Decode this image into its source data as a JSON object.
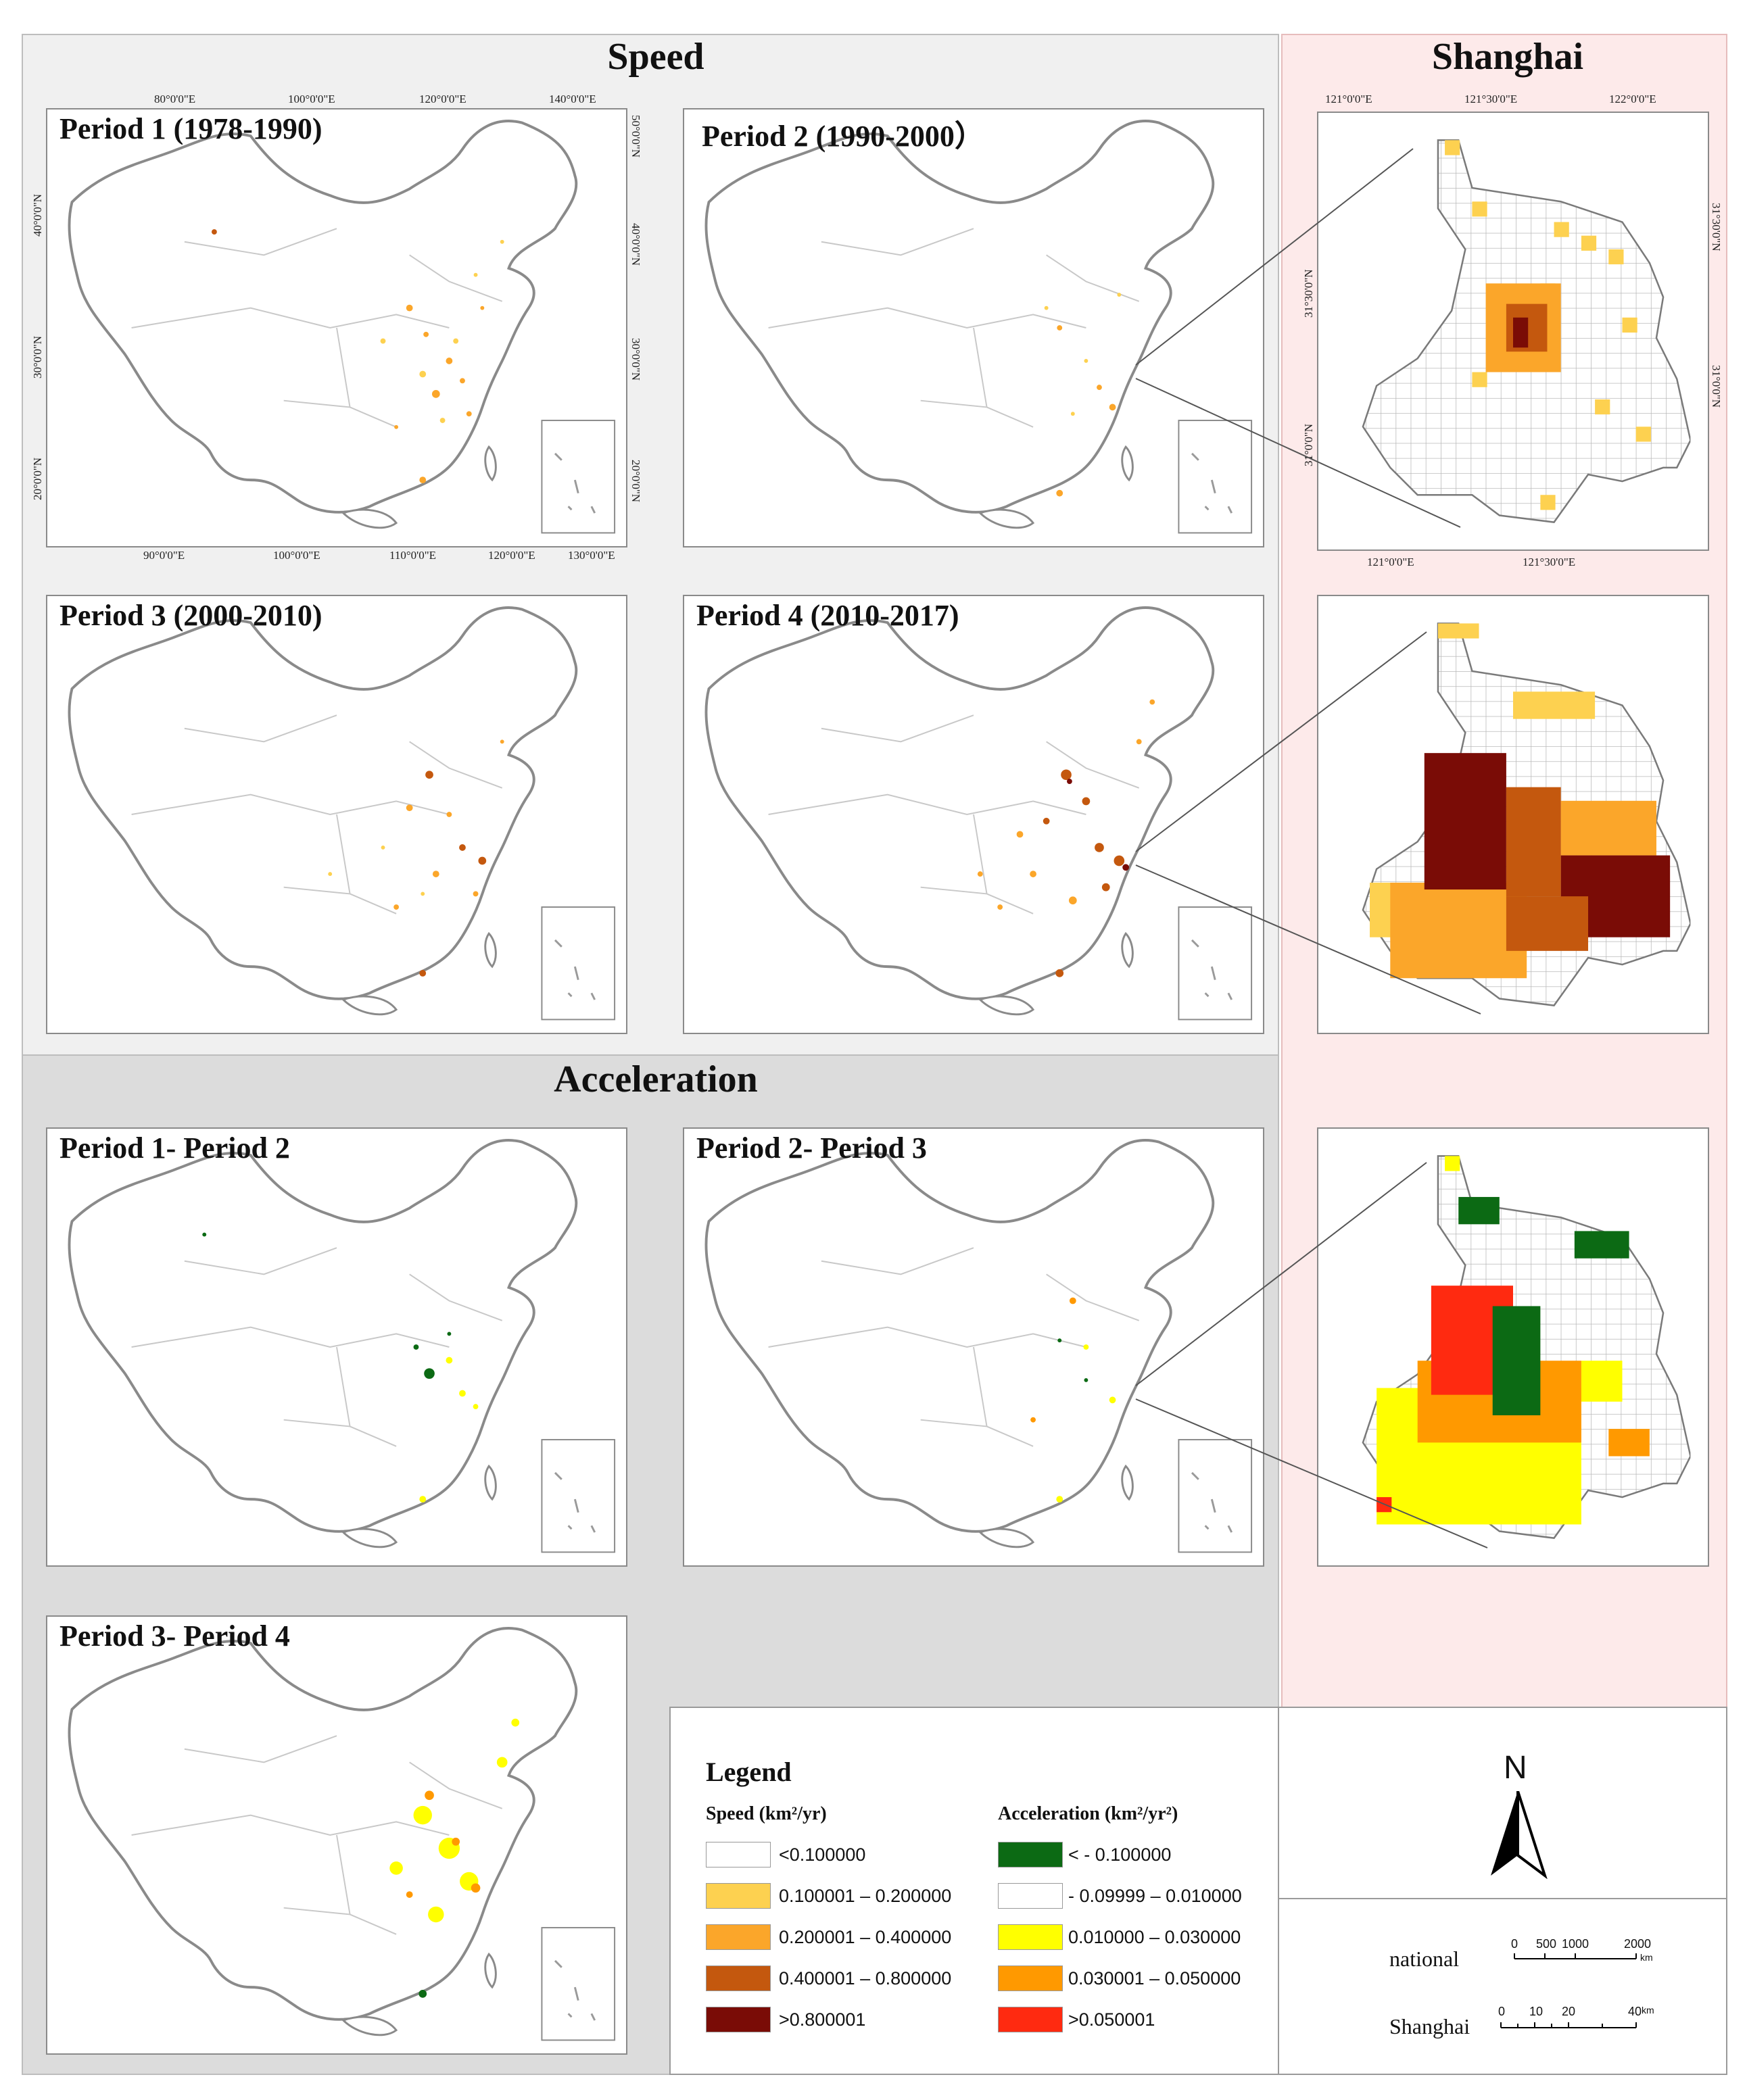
{
  "sections": {
    "speed": "Speed",
    "acceleration": "Acceleration",
    "shanghai": "Shanghai"
  },
  "panels": [
    {
      "title": "Period 1 (1978-1990)"
    },
    {
      "title": "Period 2 (1990-2000）"
    },
    {
      "title": "Period 3 (2000-2010)"
    },
    {
      "title": "Period 4 (2010-2017)"
    },
    {
      "title": "Period 1- Period 2"
    },
    {
      "title": "Period 2- Period 3"
    },
    {
      "title": "Period 3- Period 4"
    }
  ],
  "axes": {
    "top": [
      "80°0'0\"E",
      "100°0'0\"E",
      "120°0'0\"E",
      "140°0'0\"E"
    ],
    "bottom": [
      "90°0'0\"E",
      "100°0'0\"E",
      "110°0'0\"E",
      "120°0'0\"E",
      "130°0'0\"E"
    ],
    "left": [
      "40°0'0\"N",
      "30°0'0\"N",
      "20°0'0\"N"
    ],
    "right": [
      "50°0'0\"N",
      "40°0'0\"N",
      "30°0'0\"N",
      "20°0'0\"N"
    ]
  },
  "shanghai_axes": {
    "top": [
      "121°0'0\"E",
      "121°30'0\"E",
      "122°0'0\"E"
    ],
    "bottom": [
      "121°0'0\"E",
      "121°30'0\"E"
    ],
    "left": [
      "31°30'0\"N",
      "31°0'0\"N"
    ],
    "right": [
      "31°30'0\"N",
      "31°0'0\"N"
    ]
  },
  "legend": {
    "title": "Legend",
    "speed_heading": "Speed (km²/yr)",
    "acc_heading": "Acceleration (km²/yr²)",
    "speed_classes": [
      {
        "label": "<0.100000",
        "color": "#ffffff"
      },
      {
        "label": "0.100001 – 0.200000",
        "color": "#fdd150"
      },
      {
        "label": "0.200001 – 0.400000",
        "color": "#fba62a"
      },
      {
        "label": "0.400001 – 0.800000",
        "color": "#c4580e"
      },
      {
        "label": ">0.800001",
        "color": "#7a0c06"
      }
    ],
    "acc_classes": [
      {
        "label": "< - 0.100000",
        "color": "#0c6a14"
      },
      {
        "label": " - 0.09999 – 0.010000",
        "color": "#ffffff"
      },
      {
        "label": "0.010000 – 0.030000",
        "color": "#ffff00"
      },
      {
        "label": "0.030001 – 0.050000",
        "color": "#ff9900"
      },
      {
        "label": ">0.050001",
        "color": "#ff2a10"
      }
    ],
    "north": "N",
    "scale_national": {
      "label": "national",
      "ticks": [
        "0",
        "500",
        "1000",
        "2000"
      ],
      "unit": "km"
    },
    "scale_shanghai": {
      "label": "Shanghai",
      "ticks": [
        "0",
        "10",
        "20",
        "40"
      ],
      "unit": "km"
    }
  }
}
